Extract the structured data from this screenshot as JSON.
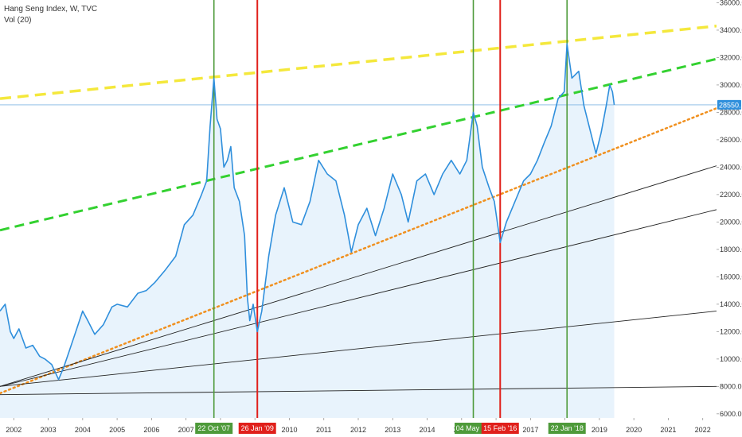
{
  "legend": {
    "title": "Hang Seng Index, W, TVC",
    "volume": "Vol (20)"
  },
  "colors": {
    "price_line": "#2f8fdc",
    "area_fill": "#e8f3fc",
    "peak_marker": "#4e9a3a",
    "trough_marker": "#e0201b",
    "resistance_top": "#f4e83c",
    "resistance_mid": "#33d130",
    "support": "#f0901f",
    "fan_lines": "#222222",
    "last_price_badge": "#2f8fdc"
  },
  "chart_data": {
    "type": "line",
    "series": [
      {
        "name": "",
        "points": [
          [
            2001.6,
            13500
          ],
          [
            2001.75,
            14000
          ],
          [
            2001.9,
            12000
          ],
          [
            2002.0,
            11500
          ],
          [
            2002.15,
            12200
          ],
          [
            2002.35,
            10800
          ],
          [
            2002.55,
            11000
          ],
          [
            2002.75,
            10200
          ],
          [
            2002.9,
            10000
          ],
          [
            2003.1,
            9600
          ],
          [
            2003.3,
            8500
          ],
          [
            2003.45,
            9400
          ],
          [
            2003.6,
            10500
          ],
          [
            2003.8,
            12000
          ],
          [
            2004.0,
            13500
          ],
          [
            2004.15,
            12800
          ],
          [
            2004.35,
            11800
          ],
          [
            2004.6,
            12500
          ],
          [
            2004.85,
            13800
          ],
          [
            2005.0,
            14000
          ],
          [
            2005.3,
            13800
          ],
          [
            2005.6,
            14800
          ],
          [
            2005.85,
            15000
          ],
          [
            2006.1,
            15600
          ],
          [
            2006.4,
            16500
          ],
          [
            2006.7,
            17500
          ],
          [
            2006.95,
            19800
          ],
          [
            2007.2,
            20500
          ],
          [
            2007.45,
            22000
          ],
          [
            2007.6,
            23000
          ],
          [
            2007.7,
            27000
          ],
          [
            2007.81,
            30500
          ],
          [
            2007.9,
            27500
          ],
          [
            2008.0,
            26800
          ],
          [
            2008.1,
            24000
          ],
          [
            2008.2,
            24500
          ],
          [
            2008.3,
            25500
          ],
          [
            2008.4,
            22500
          ],
          [
            2008.55,
            21500
          ],
          [
            2008.7,
            19000
          ],
          [
            2008.78,
            14500
          ],
          [
            2008.85,
            12800
          ],
          [
            2008.95,
            14000
          ],
          [
            2009.07,
            12000
          ],
          [
            2009.2,
            13500
          ],
          [
            2009.4,
            17500
          ],
          [
            2009.6,
            20500
          ],
          [
            2009.85,
            22500
          ],
          [
            2010.1,
            20000
          ],
          [
            2010.35,
            19800
          ],
          [
            2010.6,
            21500
          ],
          [
            2010.85,
            24500
          ],
          [
            2011.1,
            23500
          ],
          [
            2011.35,
            23000
          ],
          [
            2011.6,
            20500
          ],
          [
            2011.8,
            17800
          ],
          [
            2012.0,
            19800
          ],
          [
            2012.25,
            21000
          ],
          [
            2012.5,
            19000
          ],
          [
            2012.75,
            21000
          ],
          [
            2013.0,
            23500
          ],
          [
            2013.25,
            22000
          ],
          [
            2013.45,
            20000
          ],
          [
            2013.7,
            23000
          ],
          [
            2013.95,
            23500
          ],
          [
            2014.2,
            22000
          ],
          [
            2014.45,
            23500
          ],
          [
            2014.7,
            24500
          ],
          [
            2014.95,
            23500
          ],
          [
            2015.15,
            24500
          ],
          [
            2015.34,
            28000
          ],
          [
            2015.45,
            27000
          ],
          [
            2015.6,
            24000
          ],
          [
            2015.8,
            22500
          ],
          [
            2015.95,
            21500
          ],
          [
            2016.12,
            18500
          ],
          [
            2016.3,
            20000
          ],
          [
            2016.55,
            21500
          ],
          [
            2016.8,
            23000
          ],
          [
            2017.0,
            23500
          ],
          [
            2017.2,
            24500
          ],
          [
            2017.4,
            25800
          ],
          [
            2017.6,
            27000
          ],
          [
            2017.8,
            29000
          ],
          [
            2017.98,
            29500
          ],
          [
            2018.06,
            33000
          ],
          [
            2018.2,
            30500
          ],
          [
            2018.4,
            31000
          ],
          [
            2018.55,
            28500
          ],
          [
            2018.75,
            26500
          ],
          [
            2018.9,
            25000
          ],
          [
            2019.05,
            26500
          ],
          [
            2019.2,
            28500
          ],
          [
            2019.3,
            30000
          ],
          [
            2019.38,
            29500
          ],
          [
            2019.43,
            28550
          ]
        ]
      }
    ],
    "last_price": "28550.2",
    "x_ticks": [
      "2002",
      "2003",
      "2004",
      "2005",
      "2006",
      "2007",
      "2008",
      "2009",
      "2010",
      "2011",
      "2012",
      "2013",
      "2014",
      "2015",
      "2016",
      "2017",
      "2018",
      "2019",
      "2020",
      "2021",
      "2022"
    ],
    "y_ticks": [
      "6000.0",
      "8000.0",
      "10000.0",
      "12000.0",
      "14000.0",
      "16000.0",
      "18000.0",
      "20000.0",
      "22000.0",
      "24000.0",
      "26000.0",
      "28000.0",
      "30000.0",
      "32000.0",
      "34000.0",
      "36000.0"
    ],
    "x_range": [
      2001.6,
      2022.4
    ],
    "y_range": [
      5700,
      36200
    ],
    "grid": false,
    "markers": [
      {
        "label": "22 Oct '07",
        "x": 2007.81,
        "kind": "peak"
      },
      {
        "label": "26 Jan '09",
        "x": 2009.07,
        "kind": "trough"
      },
      {
        "label": "04 May '15",
        "x": 2015.34,
        "kind": "peak"
      },
      {
        "label": "15 Feb '16",
        "x": 2016.12,
        "kind": "trough"
      },
      {
        "label": "22 Jan '18",
        "x": 2018.06,
        "kind": "peak"
      }
    ],
    "trendlines": [
      {
        "kind": "resistance_top",
        "from": [
          2001.6,
          29000
        ],
        "to": [
          2022.4,
          34300
        ]
      },
      {
        "kind": "resistance_mid",
        "from": [
          2001.6,
          19400
        ],
        "to": [
          2022.4,
          31900
        ]
      },
      {
        "kind": "support",
        "from": [
          2001.6,
          7500
        ],
        "to": [
          2022.4,
          28300
        ]
      },
      {
        "kind": "fan_lines",
        "from": [
          2001.6,
          8000
        ],
        "to": [
          2022.4,
          24100
        ]
      },
      {
        "kind": "fan_lines",
        "from": [
          2001.6,
          8000
        ],
        "to": [
          2022.4,
          20900
        ]
      },
      {
        "kind": "fan_lines",
        "from": [
          2001.6,
          8000
        ],
        "to": [
          2022.4,
          13500
        ]
      },
      {
        "kind": "fan_lines",
        "from": [
          2001.6,
          7400
        ],
        "to": [
          2022.4,
          8000
        ]
      }
    ]
  }
}
